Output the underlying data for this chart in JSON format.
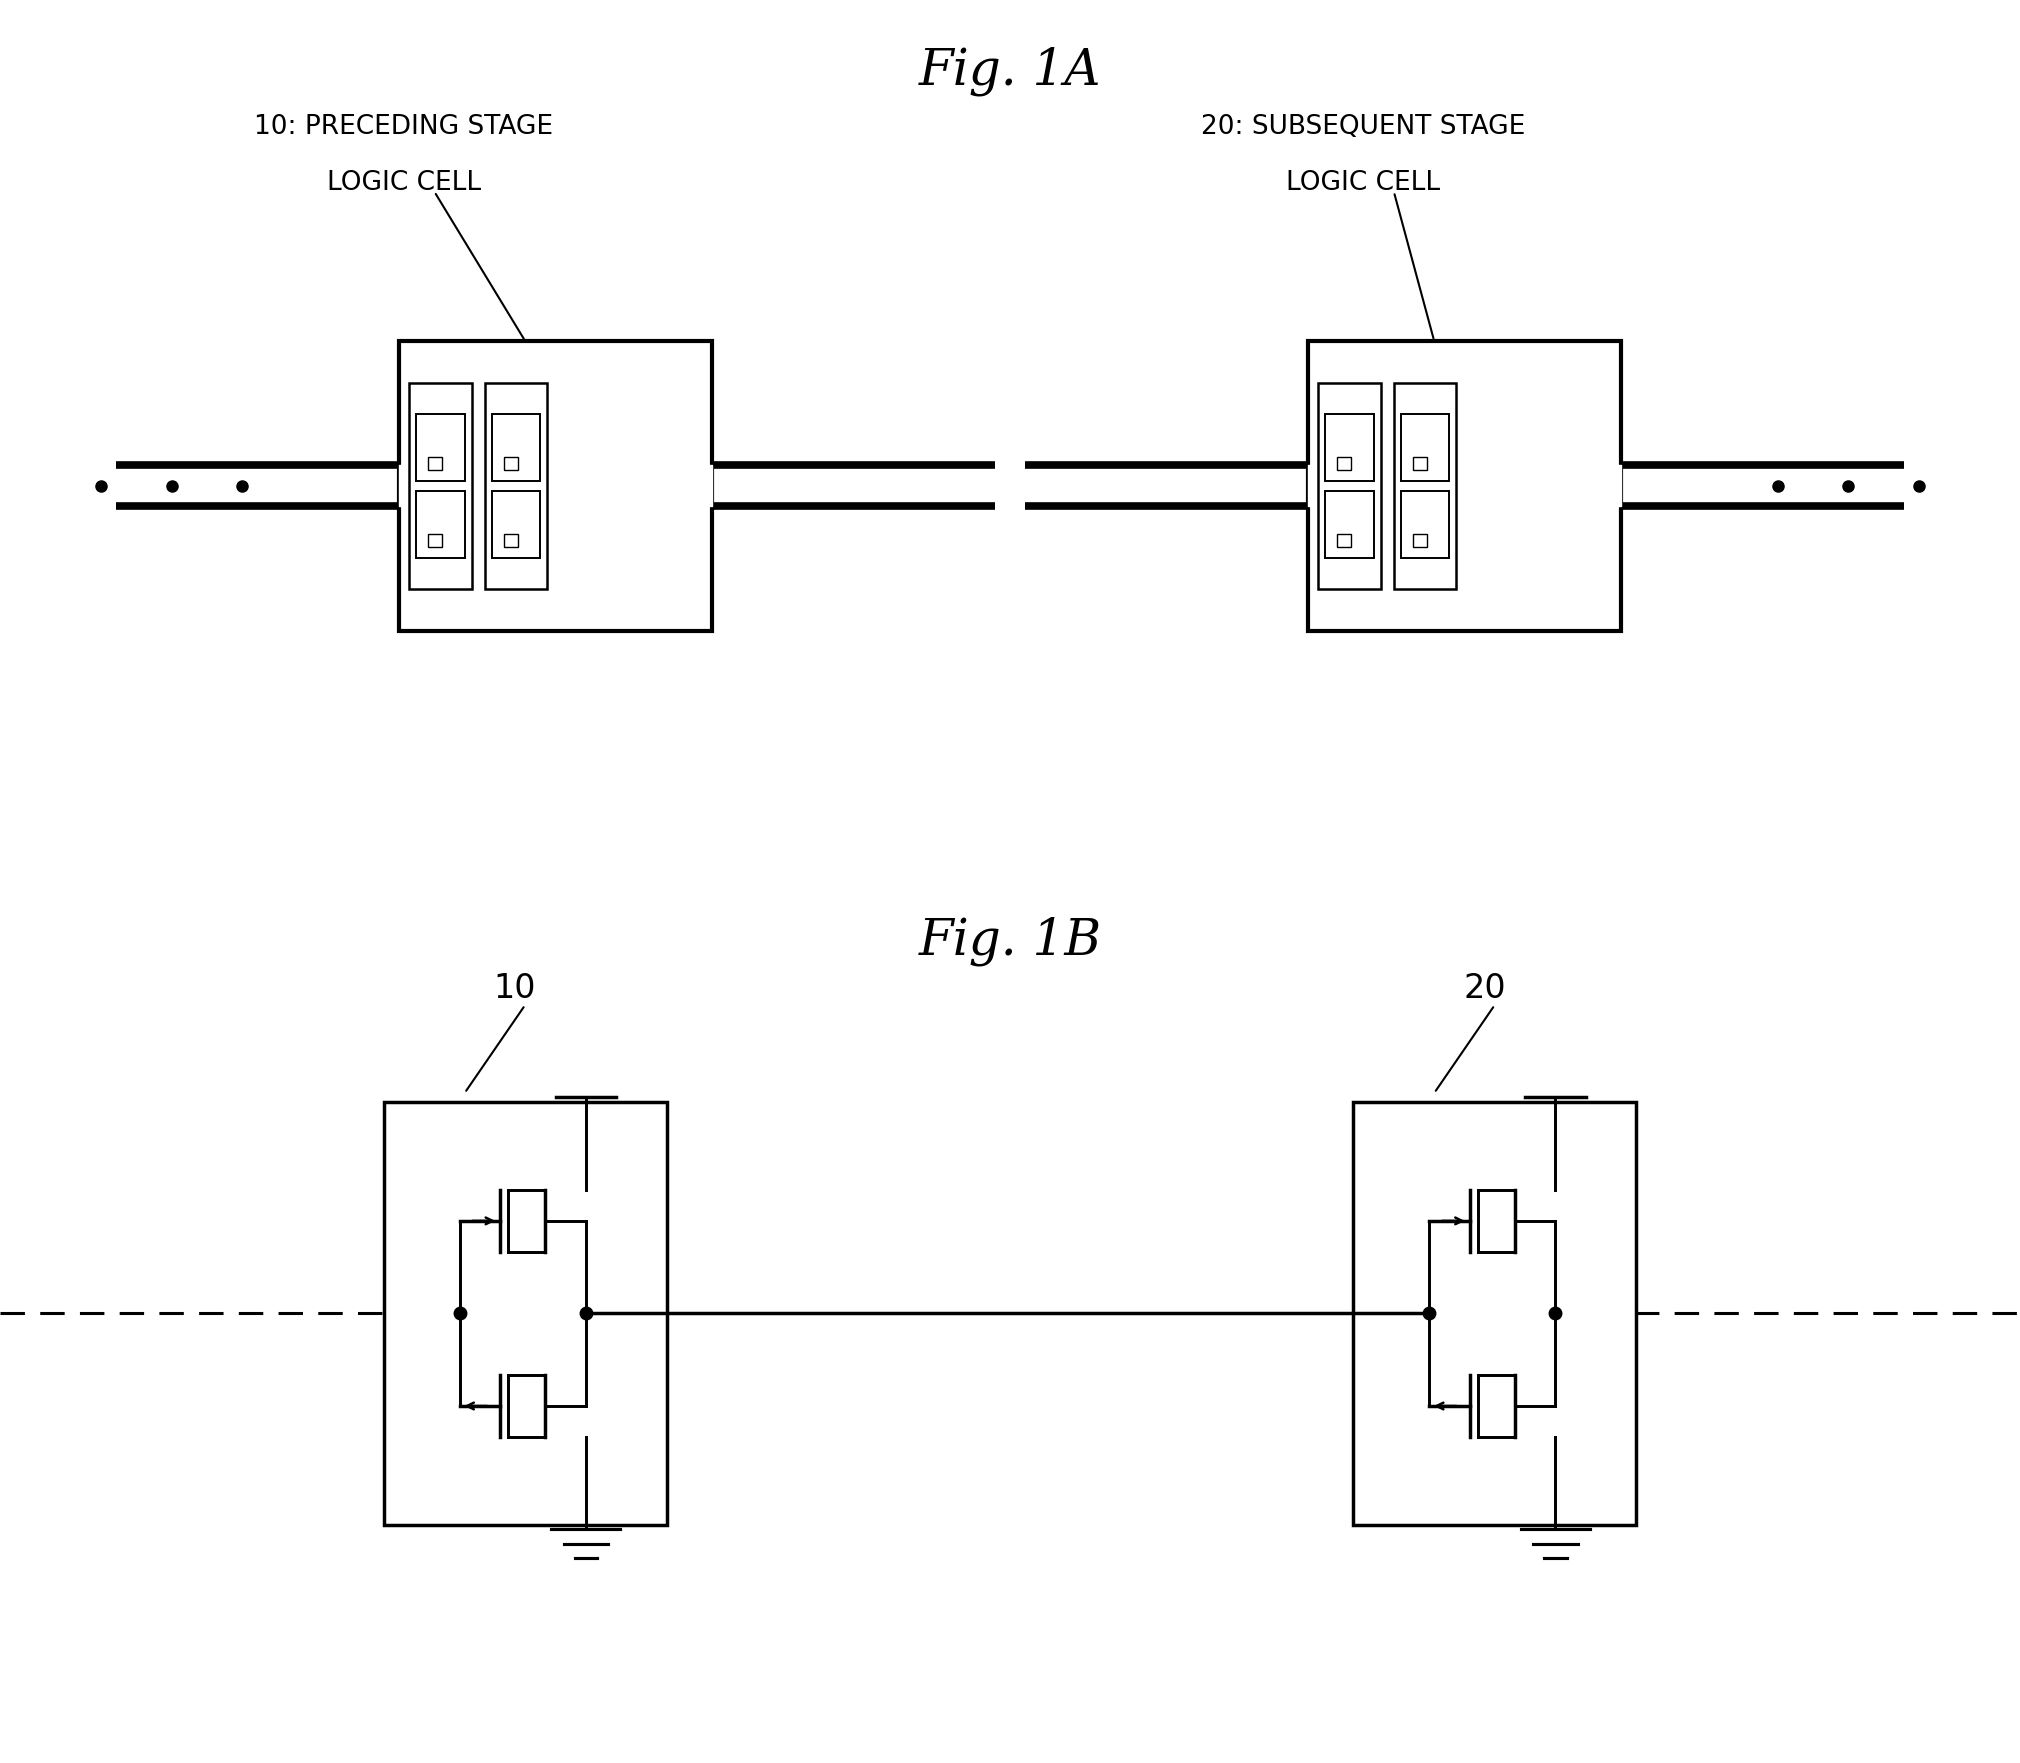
{
  "fig_title_A": "Fig. 1A",
  "fig_title_B": "Fig. 1B",
  "label_10_A_line1": "10: PRECEDING STAGE",
  "label_10_A_line2": "LOGIC CELL",
  "label_20_A_line1": "20: SUBSEQUENT STAGE",
  "label_20_A_line2": "LOGIC CELL",
  "label_10_B": "10",
  "label_20_B": "20",
  "bg_color": "#ffffff",
  "line_color": "#000000",
  "title_fontsize": 36,
  "label_fontsize_A": 19,
  "label_fontsize_B": 24
}
